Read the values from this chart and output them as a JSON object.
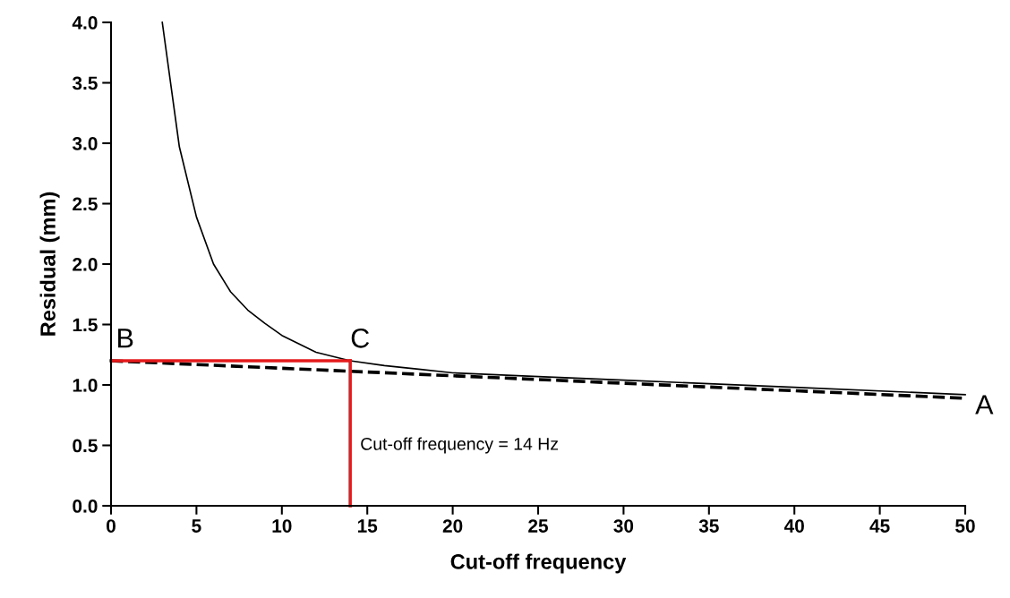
{
  "chart_data": {
    "type": "line",
    "xlabel": "Cut-off frequency",
    "ylabel": "Residual (mm)",
    "xlim": [
      0,
      50
    ],
    "ylim": [
      0,
      4
    ],
    "xticks": [
      0,
      5,
      10,
      15,
      20,
      25,
      30,
      35,
      40,
      45,
      50
    ],
    "yticks": [
      {
        "value": 0,
        "label": "0.0"
      },
      {
        "value": 0.5,
        "label": "0.5"
      },
      {
        "value": 1,
        "label": "1.0"
      },
      {
        "value": 1.5,
        "label": "1.5"
      },
      {
        "value": 2,
        "label": "2.0"
      },
      {
        "value": 2.5,
        "label": "2.5"
      },
      {
        "value": 3,
        "label": "3.0"
      },
      {
        "value": 3.5,
        "label": "3.5"
      },
      {
        "value": 4,
        "label": "4.0"
      }
    ],
    "grid": false,
    "legend": false,
    "series": [
      {
        "color": "#000000",
        "line_style": "solid",
        "x": [
          3,
          4,
          5,
          6,
          7,
          8,
          9,
          10,
          12,
          14,
          16,
          18,
          20,
          25,
          30,
          40,
          50
        ],
        "values": [
          4.0,
          2.97,
          2.39,
          2.0,
          1.77,
          1.62,
          1.51,
          1.41,
          1.27,
          1.2,
          1.16,
          1.13,
          1.1,
          1.07,
          1.04,
          0.98,
          0.92
        ]
      },
      {
        "color": "#000000",
        "line_style": "dashed",
        "x": [
          0,
          50
        ],
        "values": [
          1.2,
          0.89
        ]
      },
      {
        "color": "#e41a1c",
        "line_style": "solid",
        "x": [
          0,
          14
        ],
        "values": [
          1.2,
          1.2
        ]
      },
      {
        "color": "#e41a1c",
        "line_style": "solid",
        "x": [
          14,
          14
        ],
        "values": [
          0,
          1.2
        ]
      }
    ],
    "annotations": [
      {
        "text": "A",
        "x": 50,
        "y": 0.9
      },
      {
        "text": "B",
        "x": 0,
        "y": 1.2
      },
      {
        "text": "C",
        "x": 14,
        "y": 1.2
      },
      {
        "text": "Cut-off frequency = 14 Hz",
        "x": 14,
        "y": 0.5
      }
    ]
  }
}
